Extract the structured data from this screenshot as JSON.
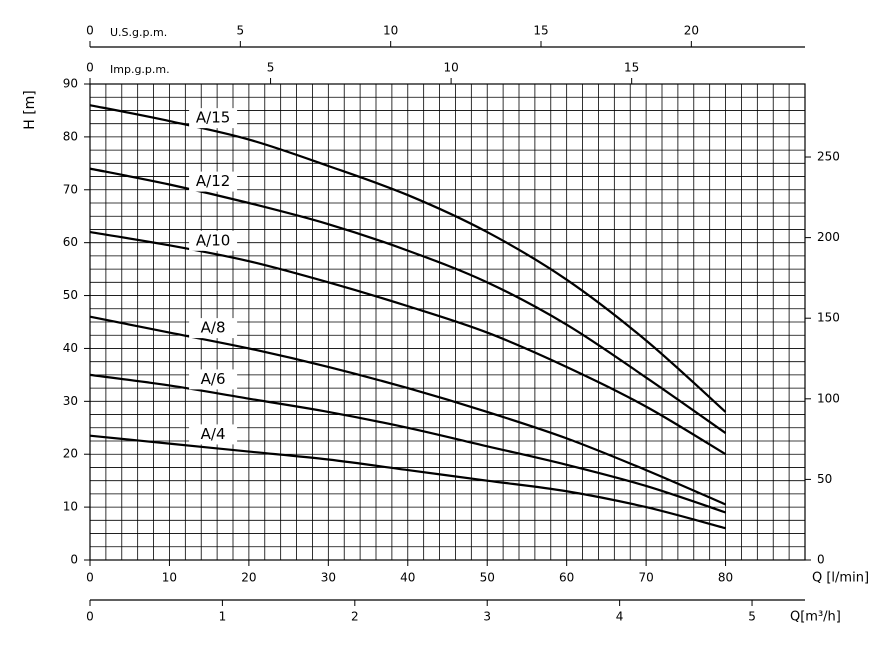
{
  "chart_data": {
    "type": "line",
    "x_label": "Q [l/min]",
    "y_label": "H [m]",
    "xlim": [
      0,
      90
    ],
    "ylim": [
      0,
      90
    ],
    "xticks": [
      0,
      10,
      20,
      30,
      40,
      50,
      60,
      70,
      80
    ],
    "yticks": [
      0,
      10,
      20,
      30,
      40,
      50,
      60,
      70,
      80,
      90
    ],
    "grid": true,
    "grid_step": {
      "x": 2,
      "y": 2.5
    },
    "x": [
      0,
      10,
      20,
      30,
      40,
      50,
      60,
      70,
      80
    ],
    "series": [
      {
        "name": "A/15",
        "color": "#000000",
        "values": [
          86,
          83,
          79.5,
          74.5,
          69,
          62,
          53,
          41.5,
          28
        ]
      },
      {
        "name": "A/12",
        "color": "#000000",
        "values": [
          74,
          71,
          67.5,
          63.5,
          58.5,
          52.5,
          44.5,
          34.5,
          24
        ]
      },
      {
        "name": "A/10",
        "color": "#000000",
        "values": [
          62,
          59.5,
          56.5,
          52.5,
          48,
          43,
          36.5,
          29,
          20
        ]
      },
      {
        "name": "A/8",
        "color": "#000000",
        "values": [
          46,
          43,
          40,
          36.5,
          32.5,
          28,
          23,
          17,
          10.5
        ]
      },
      {
        "name": "A/6",
        "color": "#000000",
        "values": [
          35,
          33,
          30.5,
          28,
          25,
          21.5,
          18,
          14,
          9
        ]
      },
      {
        "name": "A/4",
        "color": "#000000",
        "values": [
          23.5,
          22,
          20.5,
          19,
          17,
          15,
          13,
          10,
          6
        ]
      }
    ],
    "y2lim": [
      0,
      295.3
    ],
    "y2ticks": [
      0,
      50,
      100,
      150,
      200,
      250
    ],
    "top_axes": [
      {
        "label": "U.S.g.p.m.",
        "lim": [
          0,
          23.78
        ],
        "ticks": [
          0,
          5,
          10,
          15,
          20
        ]
      },
      {
        "label": "Imp.g.p.m.",
        "lim": [
          0,
          19.8
        ],
        "ticks": [
          0,
          5,
          10,
          15
        ]
      }
    ],
    "bottom_axis": {
      "label": "Q[m³/h]",
      "lim": [
        0,
        5.4
      ],
      "ticks": [
        0,
        1,
        2,
        3,
        4,
        5
      ]
    }
  }
}
